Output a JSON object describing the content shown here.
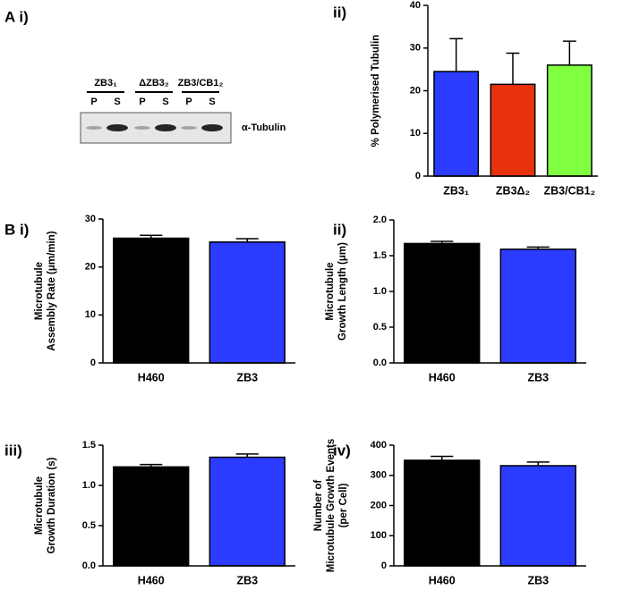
{
  "blot": {
    "panel_label": "A i)",
    "protein": "α-Tubulin",
    "groups": [
      {
        "label": "ZB3₁",
        "lanes": [
          "P",
          "S"
        ]
      },
      {
        "label": "ΔZB3₂",
        "lanes": [
          "P",
          "S"
        ]
      },
      {
        "label": "ZB3/CB1₂",
        "lanes": [
          "P",
          "S"
        ]
      }
    ]
  },
  "chart_data": [
    {
      "type": "bar",
      "panel_label": "ii)",
      "ylabel": [
        "% Polymerised Tubulin"
      ],
      "categories": [
        "ZB3₁",
        "ZB3Δ₂",
        "ZB3/CB1₂"
      ],
      "values": [
        24.5,
        21.5,
        26
      ],
      "errors": [
        7.7,
        7.3,
        5.6
      ],
      "colors": [
        "#2b3cff",
        "#e8320c",
        "#80ff40"
      ],
      "ylim": [
        0,
        40
      ],
      "yticks": [
        0,
        10,
        20,
        30,
        40
      ]
    },
    {
      "type": "bar",
      "panel_label": "B i)",
      "ylabel": [
        "Microtubule",
        "Assembly Rate (μm/min)"
      ],
      "categories": [
        "H460",
        "ZB3"
      ],
      "values": [
        26,
        25.2
      ],
      "errors": [
        0.6,
        0.7
      ],
      "colors": [
        "#000000",
        "#2b3cff"
      ],
      "ylim": [
        0,
        30
      ],
      "yticks": [
        0,
        10,
        20,
        30
      ]
    },
    {
      "type": "bar",
      "panel_label": "ii)",
      "ylabel": [
        "Microtubule",
        "Growth Length (μm)"
      ],
      "categories": [
        "H460",
        "ZB3"
      ],
      "values": [
        1.67,
        1.59
      ],
      "errors": [
        0.03,
        0.03
      ],
      "colors": [
        "#000000",
        "#2b3cff"
      ],
      "ylim": [
        0,
        2
      ],
      "yticks": [
        {
          "value": 0,
          "label": "0.0"
        },
        0.5,
        {
          "value": 1,
          "label": "1.0"
        },
        1.5,
        {
          "value": 2,
          "label": "2.0"
        }
      ]
    },
    {
      "type": "bar",
      "panel_label": "iii)",
      "ylabel": [
        "Microtubule",
        "Growth Duration (s)"
      ],
      "categories": [
        "H460",
        "ZB3"
      ],
      "values": [
        1.23,
        1.35
      ],
      "errors": [
        0.03,
        0.04
      ],
      "colors": [
        "#000000",
        "#2b3cff"
      ],
      "ylim": [
        0,
        1.5
      ],
      "yticks": [
        {
          "value": 0,
          "label": "0.0"
        },
        0.5,
        {
          "value": 1,
          "label": "1.0"
        },
        1.5
      ]
    },
    {
      "type": "bar",
      "panel_label": "iv)",
      "ylabel": [
        "Number of",
        "Microtubule Growth Events",
        "(per Cell)"
      ],
      "categories": [
        "H460",
        "ZB3"
      ],
      "values": [
        350,
        332
      ],
      "errors": [
        13,
        12
      ],
      "colors": [
        "#000000",
        "#2b3cff"
      ],
      "ylim": [
        0,
        400
      ],
      "yticks": [
        0,
        100,
        200,
        300,
        400
      ]
    }
  ]
}
